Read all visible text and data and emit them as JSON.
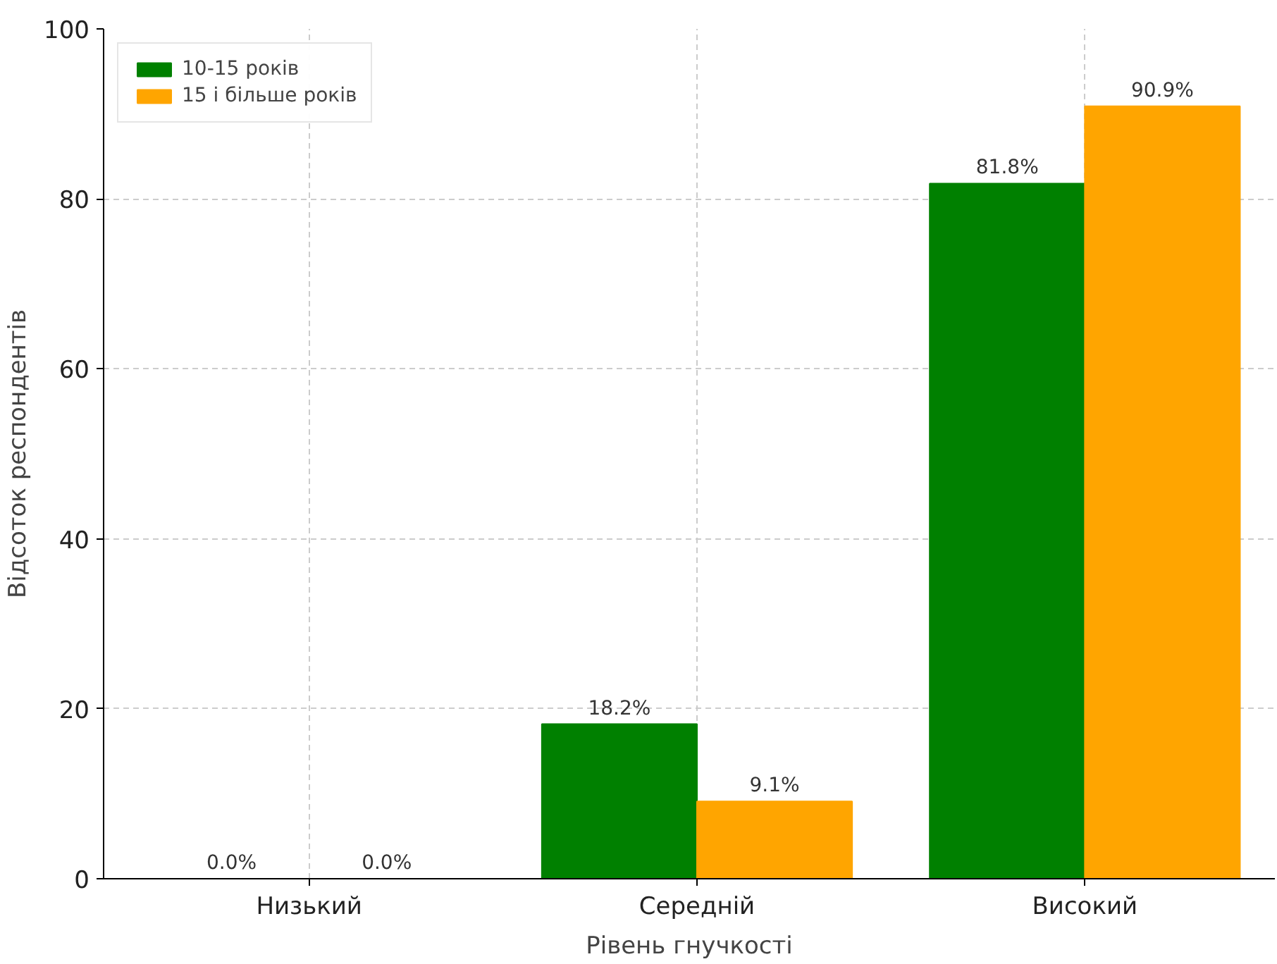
{
  "chart_data": {
    "type": "bar",
    "xlabel": "Рівень гнучкості",
    "ylabel": "Відсоток респондентів",
    "categories": [
      "Низький",
      "Середній",
      "Високий"
    ],
    "series": [
      {
        "name": "10-15 років",
        "color": "#008000",
        "values": [
          0,
          18.2,
          81.8
        ],
        "value_labels": [
          "0.0%",
          "18.2%",
          "81.8%"
        ]
      },
      {
        "name": "15 і більше років",
        "color": "#ffa500",
        "values": [
          0,
          9.1,
          90.9
        ],
        "value_labels": [
          "0.0%",
          "9.1%",
          "90.9%"
        ]
      }
    ],
    "ylim": [
      0,
      100
    ],
    "yticks": [
      0,
      20,
      40,
      60,
      80,
      100
    ],
    "grid": true,
    "legend": "top left"
  }
}
